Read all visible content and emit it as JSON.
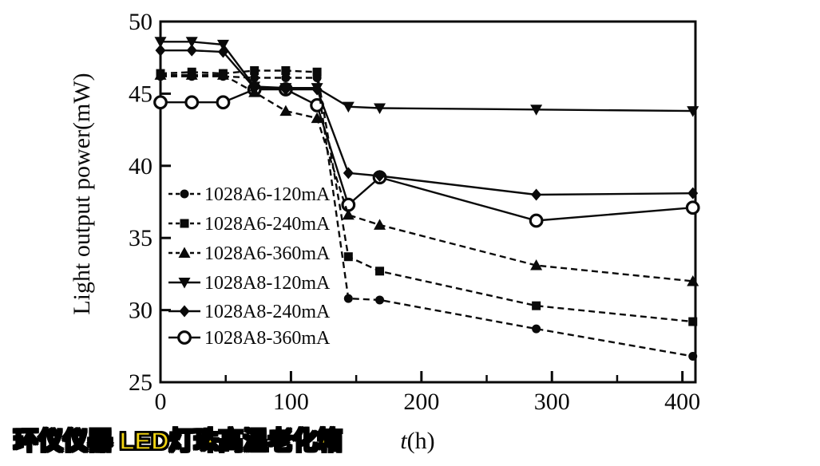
{
  "caption": {
    "text": "环仪仪器 LED灯珠高温老化箱",
    "color": "#F2D411"
  },
  "labels": {
    "xlabel_italic": "t",
    "xlabel_rest": "(h)"
  },
  "colors": {
    "foreground": "#0a0a0a",
    "background": "#ffffff"
  },
  "chart_data": {
    "type": "line",
    "title": "",
    "xlabel": "t(h)",
    "ylabel": "Light output power(mW)",
    "xlim": [
      0,
      410
    ],
    "ylim": [
      25,
      50
    ],
    "x_major_ticks": [
      0,
      100,
      200,
      300,
      400
    ],
    "x_minor_ticks": [
      50,
      150,
      250,
      350
    ],
    "y_major_ticks": [
      25,
      30,
      35,
      40,
      45,
      50
    ],
    "grid": false,
    "legend_position": "inside-left",
    "x": [
      0,
      24,
      48,
      72,
      96,
      120,
      144,
      168,
      288,
      408
    ],
    "series": [
      {
        "name": "1028A6-120mA",
        "marker": "circle-filled",
        "line": "dashed",
        "values": [
          46.2,
          46.2,
          46.2,
          46.1,
          46.1,
          46.1,
          30.8,
          30.7,
          28.7,
          26.8
        ]
      },
      {
        "name": "1028A6-240mA",
        "marker": "square-filled",
        "line": "dashed",
        "values": [
          46.4,
          46.5,
          46.4,
          46.6,
          46.6,
          46.5,
          33.7,
          32.7,
          30.3,
          29.2
        ]
      },
      {
        "name": "1028A6-360mA",
        "marker": "triangle-up-filled",
        "line": "dashed",
        "values": [
          46.3,
          46.3,
          46.3,
          45.1,
          43.8,
          43.3,
          36.6,
          35.9,
          33.1,
          32.0
        ]
      },
      {
        "name": "1028A8-120mA",
        "marker": "triangle-down-filled",
        "line": "solid",
        "values": [
          48.6,
          48.6,
          48.4,
          45.5,
          45.4,
          45.4,
          44.1,
          44.0,
          43.9,
          43.8
        ]
      },
      {
        "name": "1028A8-240mA",
        "marker": "diamond-filled",
        "line": "solid",
        "values": [
          48.0,
          48.0,
          47.9,
          45.4,
          45.3,
          45.3,
          39.5,
          39.3,
          38.0,
          38.1
        ]
      },
      {
        "name": "1028A8-360mA",
        "marker": "circle-open",
        "line": "solid",
        "values": [
          44.4,
          44.4,
          44.4,
          45.3,
          45.3,
          44.2,
          37.3,
          39.2,
          36.2,
          37.1
        ]
      }
    ]
  }
}
